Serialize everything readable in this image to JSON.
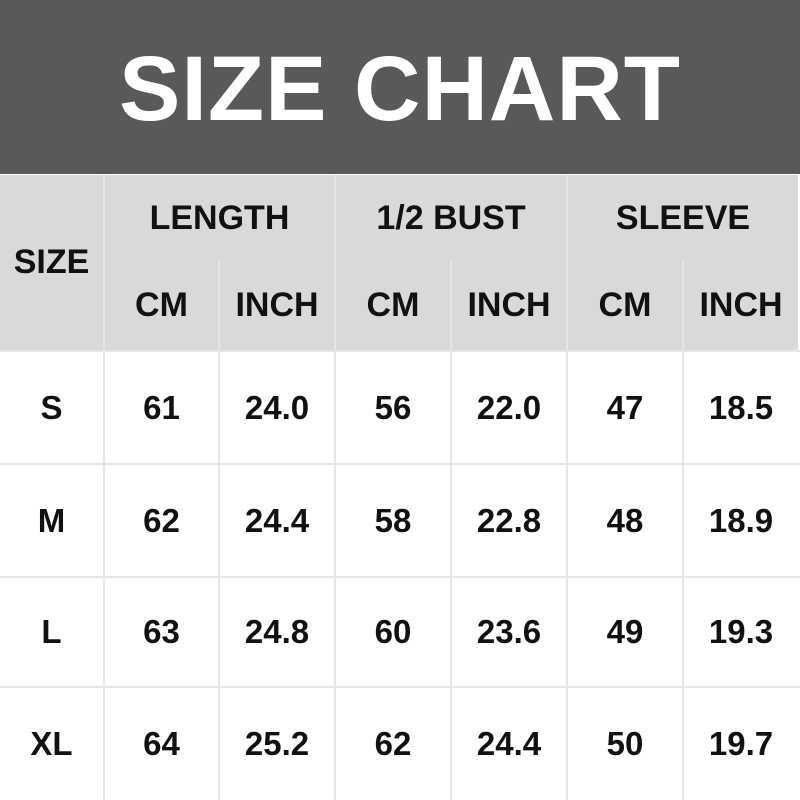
{
  "title": "SIZE CHART",
  "header": {
    "size": "SIZE",
    "groups": [
      "LENGTH",
      "1/2 BUST",
      "SLEEVE"
    ],
    "units": [
      "CM",
      "INCH",
      "CM",
      "INCH",
      "CM",
      "INCH"
    ]
  },
  "rows": [
    {
      "size": "S",
      "values": [
        "61",
        "24.0",
        "56",
        "22.0",
        "47",
        "18.5"
      ]
    },
    {
      "size": "M",
      "values": [
        "62",
        "24.4",
        "58",
        "22.8",
        "48",
        "18.9"
      ]
    },
    {
      "size": "L",
      "values": [
        "63",
        "24.8",
        "60",
        "23.6",
        "49",
        "19.3"
      ]
    },
    {
      "size": "XL",
      "values": [
        "64",
        "25.2",
        "62",
        "24.4",
        "50",
        "19.7"
      ]
    }
  ],
  "colors": {
    "title_band": "#595959",
    "header_bg": "#d9d9d9",
    "body_bg": "#ffffff",
    "text": "#111111"
  }
}
